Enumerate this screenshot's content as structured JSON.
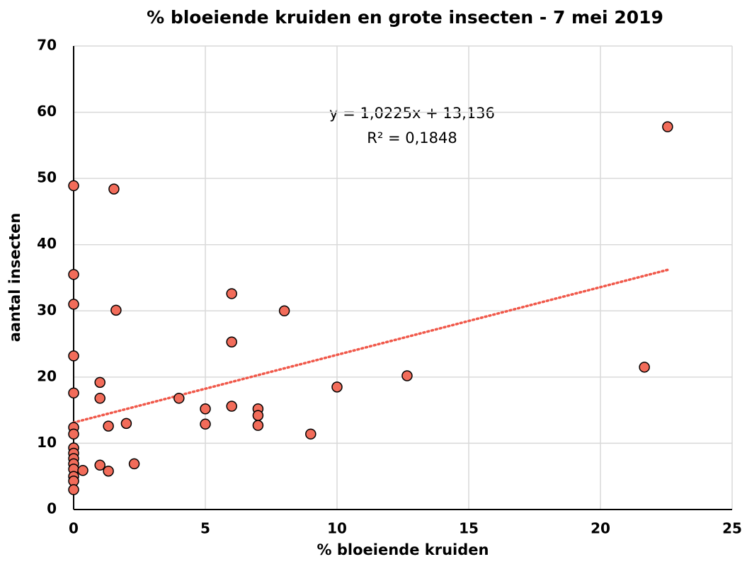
{
  "chart_data": {
    "type": "scatter",
    "title": "% bloeiende kruiden en grote insecten  - 7 mei 2019",
    "x_label": "% bloeiende kruiden",
    "y_label": "aantal insecten",
    "annotations": [
      "y = 1,0225x + 13,136",
      "R² = 0,1848"
    ],
    "trendline": {
      "slope": 1.0225,
      "intercept": 13.136,
      "color": "#f0584a"
    },
    "series": [
      {
        "name": "aantal insecten",
        "color": "#f26c5a",
        "x": [
          0,
          0,
          0,
          0,
          0,
          0,
          0,
          0,
          0,
          0,
          0,
          0,
          0,
          0,
          0,
          1.53,
          1.61,
          1.0,
          1.0,
          1.32,
          2.0,
          0.35,
          1.0,
          1.32,
          2.3,
          4.0,
          5.0,
          5.0,
          6.0,
          6.0,
          6.0,
          7.0,
          7.0,
          7.0,
          8.0,
          9.0,
          10.0,
          12.66,
          21.67,
          22.55
        ],
        "values": [
          48.9,
          35.5,
          31.0,
          23.2,
          17.6,
          12.4,
          11.4,
          9.3,
          8.5,
          7.7,
          6.9,
          6.1,
          5.0,
          4.3,
          3.0,
          48.4,
          30.1,
          19.2,
          16.8,
          12.6,
          13.0,
          5.9,
          6.7,
          5.8,
          6.9,
          16.8,
          15.2,
          12.9,
          32.6,
          25.3,
          15.6,
          15.2,
          14.2,
          12.7,
          30.0,
          11.4,
          18.5,
          20.2,
          21.5,
          57.8
        ]
      }
    ],
    "xlim": [
      0,
      25
    ],
    "xticks": [
      0,
      5,
      10,
      15,
      20,
      25
    ],
    "ylim": [
      0,
      70
    ],
    "yticks": [
      0,
      10,
      20,
      30,
      40,
      50,
      60,
      70
    ],
    "grid": true
  }
}
